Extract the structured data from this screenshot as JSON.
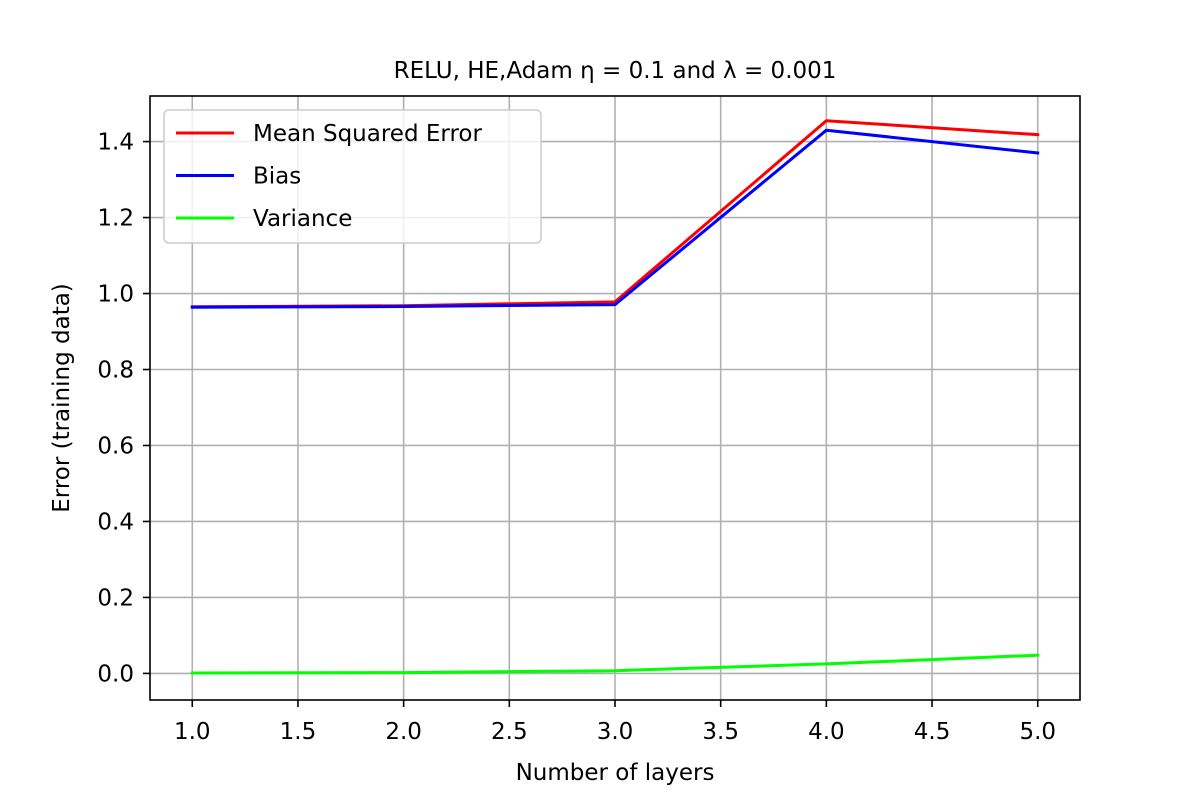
{
  "chart_data": {
    "type": "line",
    "title": "RELU, HE,Adam η = 0.1 and λ = 0.001",
    "xlabel": "Number of layers",
    "ylabel": "Error (training data)",
    "x": [
      1,
      2,
      3,
      4,
      5
    ],
    "series": [
      {
        "name": "Mean Squared Error",
        "color": "#ff0000",
        "values": [
          0.965,
          0.968,
          0.978,
          1.455,
          1.418
        ]
      },
      {
        "name": "Bias",
        "color": "#0000ff",
        "values": [
          0.964,
          0.966,
          0.971,
          1.43,
          1.37
        ]
      },
      {
        "name": "Variance",
        "color": "#00ff00",
        "values": [
          0.001,
          0.002,
          0.007,
          0.025,
          0.048
        ]
      }
    ],
    "xlim": [
      0.8,
      5.2
    ],
    "ylim": [
      -0.07,
      1.52
    ],
    "xticks": [
      1.0,
      1.5,
      2.0,
      2.5,
      3.0,
      3.5,
      4.0,
      4.5,
      5.0
    ],
    "xtick_labels": [
      "1.0",
      "1.5",
      "2.0",
      "2.5",
      "3.0",
      "3.5",
      "4.0",
      "4.5",
      "5.0"
    ],
    "yticks": [
      0.0,
      0.2,
      0.4,
      0.6,
      0.8,
      1.0,
      1.2,
      1.4
    ],
    "ytick_labels": [
      "0.0",
      "0.2",
      "0.4",
      "0.6",
      "0.8",
      "1.0",
      "1.2",
      "1.4"
    ],
    "grid": true,
    "legend_position": "upper-left"
  }
}
